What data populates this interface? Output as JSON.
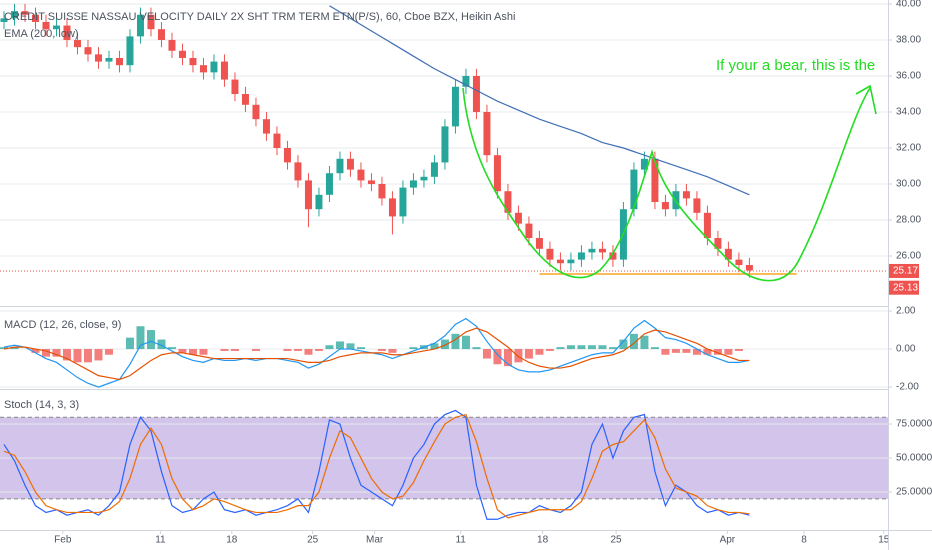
{
  "chart_data": [
    {
      "type": "candlestick",
      "title": "CREDIT SUISSE NASSAU VELOCITY DAILY 2X SHT TRM TERM ETN(P/S), 60, Cboe BZX, Heikin Ashi",
      "open": [
        39.0,
        39.2,
        39.6,
        39.4,
        39.0,
        38.6,
        38.8,
        38.0,
        37.6,
        37.2,
        36.8,
        37.0,
        36.6,
        38.2,
        39.4,
        38.6,
        38.0,
        37.4,
        37.0,
        36.6,
        36.2,
        36.8,
        35.8,
        35.0,
        34.4,
        33.6,
        32.8,
        32.0,
        31.2,
        30.2,
        28.6,
        29.4,
        30.6,
        31.4,
        30.8,
        30.2,
        30.0,
        29.2,
        28.2,
        29.8,
        30.2,
        30.4,
        31.2,
        33.2,
        35.4,
        36.0,
        34.0,
        31.6,
        29.6,
        28.4,
        27.8,
        27.0,
        26.4,
        25.8,
        25.6,
        25.8,
        26.2,
        26.4,
        26.2,
        25.8,
        28.6,
        30.8,
        31.4,
        29.0,
        28.6,
        29.6,
        29.2,
        28.4,
        27.0,
        26.4,
        25.8,
        25.5
      ],
      "high": [
        39.6,
        40.0,
        40.0,
        39.8,
        39.4,
        39.2,
        39.2,
        38.4,
        38.0,
        37.6,
        37.4,
        37.4,
        38.6,
        39.8,
        39.8,
        39.0,
        38.4,
        37.8,
        37.4,
        37.0,
        37.2,
        37.2,
        36.2,
        35.4,
        34.8,
        34.0,
        33.2,
        32.4,
        31.6,
        30.6,
        29.8,
        31.0,
        31.8,
        31.8,
        31.2,
        30.6,
        30.4,
        29.6,
        30.2,
        30.6,
        30.8,
        31.6,
        33.6,
        35.8,
        36.4,
        36.4,
        34.4,
        32.0,
        30.0,
        28.8,
        28.2,
        27.4,
        26.8,
        26.2,
        26.2,
        26.6,
        26.8,
        26.8,
        26.6,
        29.0,
        31.2,
        31.8,
        31.8,
        29.4,
        30.0,
        30.0,
        29.6,
        28.8,
        27.4,
        26.8,
        26.2,
        25.9
      ],
      "low": [
        38.6,
        38.8,
        39.0,
        38.6,
        38.2,
        38.2,
        37.6,
        37.2,
        36.8,
        36.4,
        36.4,
        36.2,
        36.2,
        37.8,
        38.2,
        37.6,
        37.0,
        36.6,
        36.2,
        35.8,
        35.8,
        35.4,
        34.6,
        34.0,
        33.2,
        32.4,
        31.6,
        30.8,
        29.8,
        27.6,
        28.2,
        29.0,
        30.2,
        30.4,
        29.8,
        29.6,
        28.8,
        27.2,
        27.8,
        29.4,
        29.8,
        30.0,
        30.8,
        32.8,
        35.0,
        33.6,
        31.2,
        29.2,
        28.0,
        27.4,
        26.6,
        26.0,
        25.4,
        25.2,
        25.2,
        25.4,
        25.8,
        25.8,
        25.4,
        25.4,
        28.2,
        30.4,
        28.6,
        28.2,
        28.2,
        28.8,
        28.0,
        26.6,
        26.0,
        25.4,
        25.1,
        24.8
      ],
      "close": [
        39.2,
        39.6,
        39.4,
        39.0,
        38.6,
        38.8,
        38.0,
        37.6,
        37.2,
        36.8,
        37.0,
        36.6,
        38.2,
        39.4,
        38.6,
        38.0,
        37.4,
        37.0,
        36.6,
        36.2,
        36.8,
        35.8,
        35.0,
        34.4,
        33.6,
        32.8,
        32.0,
        31.2,
        30.2,
        28.6,
        29.4,
        30.6,
        31.4,
        30.8,
        30.2,
        30.0,
        29.2,
        28.2,
        29.8,
        30.2,
        30.4,
        31.2,
        33.2,
        35.4,
        36.0,
        34.0,
        31.6,
        29.6,
        28.4,
        27.8,
        27.0,
        26.4,
        25.8,
        25.6,
        25.8,
        26.2,
        26.4,
        26.2,
        25.8,
        28.6,
        30.8,
        31.4,
        29.0,
        28.6,
        29.6,
        29.2,
        28.4,
        27.0,
        26.4,
        25.8,
        25.5,
        25.2
      ],
      "up_color": "#26a69a",
      "down_color": "#ef5350",
      "series": [
        {
          "name": "EMA (200, low)",
          "color": "#3f6fb5",
          "x": [
            31,
            33,
            35,
            37,
            39,
            41,
            43,
            45,
            47,
            49,
            51,
            53,
            55,
            57,
            59,
            61,
            63,
            65,
            67,
            69,
            71
          ],
          "values": [
            39.9,
            39.2,
            38.5,
            37.8,
            37.1,
            36.4,
            35.8,
            35.2,
            34.6,
            34.1,
            33.6,
            33.2,
            32.8,
            32.3,
            32.0,
            31.6,
            31.2,
            30.8,
            30.4,
            29.9,
            29.4
          ]
        }
      ],
      "xlim": [
        -0.38,
        84.2
      ],
      "xticks": [
        {
          "value": 5.6,
          "label": "Feb"
        },
        {
          "value": 14.9,
          "label": "11"
        },
        {
          "value": 21.7,
          "label": "18"
        },
        {
          "value": 29.4,
          "label": "25"
        },
        {
          "value": 35.3,
          "label": "Mar"
        },
        {
          "value": 43.5,
          "label": "11"
        },
        {
          "value": 51.3,
          "label": "18"
        },
        {
          "value": 58.3,
          "label": "25"
        },
        {
          "value": 68.9,
          "label": "Apr"
        },
        {
          "value": 76.2,
          "label": "8"
        },
        {
          "value": 83.8,
          "label": "15"
        }
      ],
      "ylim": [
        23.28,
        40.22
      ],
      "yticks": [
        {
          "value": 40,
          "label": "40.00"
        },
        {
          "value": 38,
          "label": "38.00"
        },
        {
          "value": 36,
          "label": "36.00"
        },
        {
          "value": 34,
          "label": "34.00"
        },
        {
          "value": 32,
          "label": "32.00"
        },
        {
          "value": 30,
          "label": "30.00"
        },
        {
          "value": 28,
          "label": "28.00"
        },
        {
          "value": 26,
          "label": "26.00"
        }
      ],
      "grid": true,
      "price_line": {
        "value": 25.17,
        "label": "25.17",
        "color": "#ef5350"
      },
      "price_label_2": {
        "value": 25.13,
        "label": "25.13",
        "color": "#ef5350"
      },
      "support_line": {
        "value": 25.0,
        "x": [
          51,
          75.5
        ],
        "color": "#f5a623"
      },
      "annotation": "If your a bear, this is the"
    },
    {
      "type": "macd",
      "title": "MACD (12, 26, close, 9)",
      "macd": [
        0.1,
        0.2,
        0.1,
        -0.2,
        -0.5,
        -0.7,
        -1.1,
        -1.5,
        -1.8,
        -2.0,
        -1.8,
        -1.6,
        -0.8,
        0.2,
        0.4,
        0.2,
        -0.1,
        -0.4,
        -0.6,
        -0.7,
        -0.5,
        -0.6,
        -0.6,
        -0.5,
        -0.6,
        -0.5,
        -0.5,
        -0.6,
        -0.7,
        -1.0,
        -0.8,
        -0.4,
        0.0,
        0.0,
        -0.1,
        -0.2,
        -0.3,
        -0.5,
        -0.3,
        -0.1,
        0.1,
        0.3,
        0.7,
        1.3,
        1.6,
        1.2,
        0.4,
        -0.3,
        -0.8,
        -1.1,
        -1.2,
        -1.2,
        -1.1,
        -0.9,
        -0.7,
        -0.5,
        -0.3,
        -0.2,
        -0.2,
        0.4,
        1.1,
        1.5,
        1.1,
        0.6,
        0.5,
        0.3,
        0.0,
        -0.3,
        -0.5,
        -0.7,
        -0.7,
        -0.6
      ],
      "signal": [
        0.0,
        0.1,
        0.1,
        0.0,
        -0.1,
        -0.3,
        -0.5,
        -0.8,
        -1.1,
        -1.4,
        -1.5,
        -1.6,
        -1.4,
        -1.0,
        -0.6,
        -0.3,
        -0.2,
        -0.2,
        -0.3,
        -0.4,
        -0.5,
        -0.5,
        -0.5,
        -0.5,
        -0.5,
        -0.5,
        -0.5,
        -0.5,
        -0.6,
        -0.7,
        -0.7,
        -0.6,
        -0.4,
        -0.3,
        -0.2,
        -0.2,
        -0.2,
        -0.3,
        -0.3,
        -0.2,
        -0.1,
        0.0,
        0.2,
        0.5,
        0.9,
        1.1,
        0.9,
        0.5,
        0.1,
        -0.4,
        -0.7,
        -0.9,
        -1.0,
        -1.0,
        -0.9,
        -0.7,
        -0.5,
        -0.4,
        -0.3,
        -0.1,
        0.3,
        0.8,
        1.0,
        0.9,
        0.7,
        0.5,
        0.3,
        0.0,
        -0.2,
        -0.4,
        -0.6,
        -0.6
      ],
      "histogram": [
        0.1,
        0.1,
        0.0,
        -0.2,
        -0.4,
        -0.4,
        -0.6,
        -0.7,
        -0.7,
        -0.6,
        -0.3,
        0.0,
        0.6,
        1.2,
        1.0,
        0.5,
        0.1,
        -0.2,
        -0.3,
        -0.3,
        0.0,
        -0.1,
        -0.1,
        0.0,
        -0.1,
        0.0,
        0.0,
        -0.1,
        -0.1,
        -0.3,
        -0.1,
        0.2,
        0.4,
        0.3,
        0.1,
        0.0,
        -0.1,
        -0.2,
        0.0,
        0.1,
        0.2,
        0.3,
        0.5,
        0.8,
        0.7,
        0.1,
        -0.5,
        -0.8,
        -0.9,
        -0.7,
        -0.5,
        -0.3,
        -0.1,
        0.1,
        0.2,
        0.2,
        0.2,
        0.2,
        0.1,
        0.5,
        0.8,
        0.7,
        0.1,
        -0.3,
        -0.2,
        -0.2,
        -0.3,
        -0.3,
        -0.3,
        -0.3,
        -0.1,
        0.0
      ],
      "macd_color": "#2196f3",
      "signal_color": "#e65100",
      "up_color": "#26a69a",
      "down_color": "#ef5350",
      "ylim": [
        -2.05,
        2.16
      ],
      "yticks": [
        {
          "value": 2,
          "label": "2.00"
        },
        {
          "value": 0,
          "label": "0.00"
        },
        {
          "value": -2,
          "label": "-2.00"
        }
      ]
    },
    {
      "type": "stochastic",
      "title": "Stoch (14, 3, 3)",
      "k": [
        60,
        48,
        30,
        15,
        10,
        12,
        8,
        10,
        12,
        8,
        15,
        25,
        60,
        80,
        70,
        40,
        15,
        10,
        12,
        20,
        25,
        12,
        10,
        12,
        8,
        10,
        12,
        15,
        20,
        10,
        40,
        78,
        75,
        50,
        30,
        25,
        20,
        15,
        30,
        50,
        60,
        75,
        82,
        85,
        80,
        30,
        5,
        5,
        8,
        10,
        10,
        15,
        12,
        10,
        15,
        25,
        60,
        75,
        50,
        70,
        80,
        82,
        40,
        15,
        30,
        25,
        15,
        10,
        12,
        8,
        10,
        8
      ],
      "d": [
        55,
        52,
        40,
        25,
        15,
        12,
        10,
        10,
        10,
        10,
        12,
        18,
        35,
        60,
        72,
        60,
        35,
        20,
        12,
        15,
        20,
        18,
        15,
        12,
        10,
        10,
        10,
        12,
        15,
        15,
        25,
        50,
        70,
        65,
        50,
        35,
        25,
        20,
        22,
        32,
        48,
        62,
        75,
        80,
        82,
        62,
        35,
        12,
        6,
        8,
        10,
        12,
        12,
        12,
        12,
        18,
        35,
        55,
        60,
        62,
        70,
        78,
        65,
        42,
        28,
        25,
        22,
        15,
        12,
        10,
        10,
        9
      ],
      "k_color": "#2962ff",
      "d_color": "#ef6c00",
      "band": [
        20,
        80
      ],
      "band_color": "#7e57c2",
      "ylim": [
        -2.9,
        99.3
      ],
      "yticks": [
        {
          "value": 75,
          "label": "75.0000"
        },
        {
          "value": 50,
          "label": "50.0000"
        },
        {
          "value": 25,
          "label": "25.0000"
        }
      ]
    }
  ]
}
